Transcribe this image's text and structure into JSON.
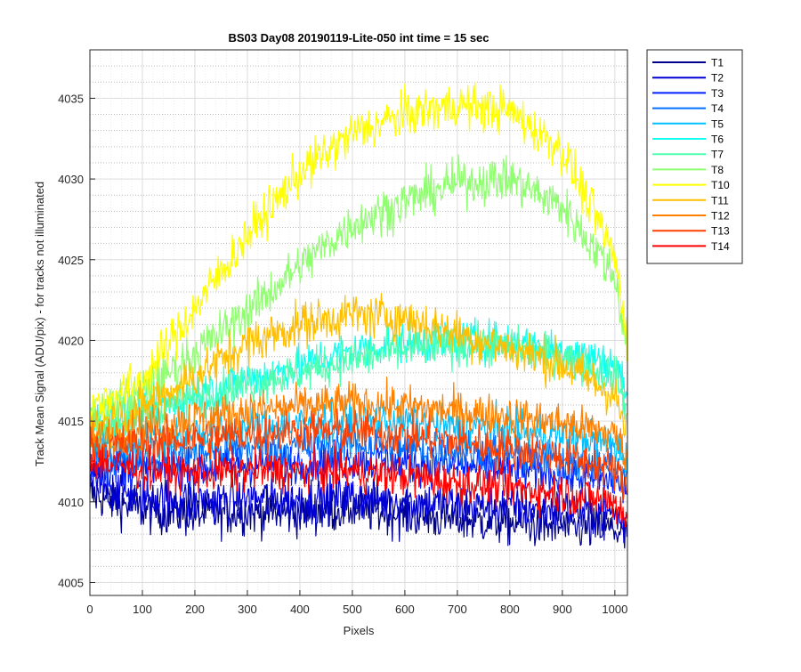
{
  "chart_data": {
    "type": "line",
    "title": "BS03 Day08 20190119-Lite-050 int time = 15 sec",
    "xlabel": "Pixels",
    "ylabel": "Track Mean Signal (ADU/pix) - for tracks not illuminated",
    "xlim": [
      0,
      1024
    ],
    "ylim": [
      4004.2,
      4038
    ],
    "xticks": [
      0,
      100,
      200,
      300,
      400,
      500,
      600,
      700,
      800,
      900,
      1000
    ],
    "yticks": [
      4005,
      4010,
      4015,
      4020,
      4025,
      4030,
      4035
    ],
    "grid": "major and minor",
    "legend_position": "outside right, top",
    "series": [
      {
        "name": "T1",
        "color": "#00008f",
        "x": [
          0,
          100,
          200,
          300,
          400,
          500,
          600,
          700,
          800,
          900,
          1000,
          1024
        ],
        "values": [
          4010.5,
          4009.5,
          4009.2,
          4009.4,
          4009.3,
          4009.6,
          4009.2,
          4008.9,
          4008.7,
          4008.4,
          4008.3,
          4007.6
        ]
      },
      {
        "name": "T2",
        "color": "#0000d6",
        "x": [
          0,
          100,
          200,
          300,
          400,
          500,
          600,
          700,
          800,
          900,
          1000,
          1024
        ],
        "values": [
          4011.2,
          4010.3,
          4010.0,
          4010.2,
          4010.1,
          4010.3,
          4010.0,
          4009.8,
          4009.7,
          4009.5,
          4009.3,
          4008.4
        ]
      },
      {
        "name": "T3",
        "color": "#0020ff",
        "x": [
          0,
          100,
          200,
          300,
          400,
          500,
          600,
          700,
          800,
          900,
          1000,
          1024
        ],
        "values": [
          4012.3,
          4012.0,
          4012.0,
          4012.3,
          4012.4,
          4012.6,
          4012.4,
          4012.2,
          4012.0,
          4011.7,
          4011.3,
          4010.6
        ]
      },
      {
        "name": "T4",
        "color": "#0070ff",
        "x": [
          0,
          100,
          200,
          300,
          400,
          500,
          600,
          700,
          800,
          900,
          1000,
          1024
        ],
        "values": [
          4012.8,
          4012.8,
          4013.0,
          4013.3,
          4013.4,
          4013.6,
          4013.4,
          4013.2,
          4013.0,
          4012.6,
          4012.2,
          4011.4
        ]
      },
      {
        "name": "T5",
        "color": "#00c0ff",
        "x": [
          0,
          100,
          200,
          300,
          400,
          500,
          600,
          700,
          800,
          900,
          1000,
          1024
        ],
        "values": [
          4013.5,
          4013.8,
          4014.2,
          4014.6,
          4014.8,
          4015.0,
          4014.9,
          4014.7,
          4014.5,
          4014.1,
          4013.6,
          4012.6
        ]
      },
      {
        "name": "T6",
        "color": "#10ffef",
        "x": [
          0,
          100,
          200,
          300,
          400,
          500,
          600,
          700,
          800,
          900,
          1000,
          1024
        ],
        "values": [
          4014.8,
          4015.6,
          4016.6,
          4017.6,
          4018.4,
          4019.4,
          4019.9,
          4020.0,
          4019.9,
          4019.5,
          4018.5,
          4016.8
        ]
      },
      {
        "name": "T7",
        "color": "#50ffaf",
        "x": [
          0,
          100,
          200,
          300,
          400,
          500,
          600,
          700,
          800,
          900,
          1000,
          1024
        ],
        "values": [
          4014.5,
          4015.4,
          4016.4,
          4017.3,
          4018.0,
          4018.8,
          4019.4,
          4019.7,
          4019.6,
          4019.0,
          4017.8,
          4015.8
        ]
      },
      {
        "name": "T8",
        "color": "#8fff70",
        "x": [
          0,
          100,
          200,
          300,
          400,
          500,
          600,
          700,
          800,
          900,
          1000,
          1024
        ],
        "values": [
          4015.3,
          4016.8,
          4019.2,
          4021.8,
          4024.6,
          4027.2,
          4028.6,
          4029.8,
          4030.0,
          4028.3,
          4024.0,
          4019.5
        ]
      },
      {
        "name": "T10",
        "color": "#ffff00",
        "x": [
          0,
          100,
          200,
          300,
          400,
          500,
          600,
          700,
          800,
          900,
          1000,
          1024
        ],
        "values": [
          4015.8,
          4017.5,
          4022.0,
          4026.5,
          4030.4,
          4032.8,
          4034.0,
          4034.6,
          4034.2,
          4031.8,
          4025.2,
          4020.0
        ]
      },
      {
        "name": "T11",
        "color": "#ffbf00",
        "x": [
          0,
          100,
          200,
          300,
          400,
          500,
          600,
          700,
          800,
          900,
          1000,
          1024
        ],
        "values": [
          4014.6,
          4015.8,
          4017.8,
          4019.8,
          4021.0,
          4021.6,
          4021.4,
          4020.4,
          4019.5,
          4018.5,
          4016.6,
          4014.0
        ]
      },
      {
        "name": "T12",
        "color": "#ff8000",
        "x": [
          0,
          100,
          200,
          300,
          400,
          500,
          600,
          700,
          800,
          900,
          1000,
          1024
        ],
        "values": [
          4013.8,
          4014.6,
          4015.2,
          4015.6,
          4015.9,
          4016.1,
          4015.9,
          4015.6,
          4015.3,
          4014.9,
          4014.2,
          4012.8
        ]
      },
      {
        "name": "T13",
        "color": "#ff4000",
        "x": [
          0,
          100,
          200,
          300,
          400,
          500,
          600,
          700,
          800,
          900,
          1000,
          1024
        ],
        "values": [
          4013.4,
          4013.6,
          4013.9,
          4014.2,
          4014.4,
          4014.4,
          4014.1,
          4013.7,
          4013.3,
          4012.8,
          4012.0,
          4010.6
        ]
      },
      {
        "name": "T14",
        "color": "#ff0000",
        "x": [
          0,
          100,
          200,
          300,
          400,
          500,
          600,
          700,
          800,
          900,
          1000,
          1024
        ],
        "values": [
          4012.6,
          4012.0,
          4011.8,
          4011.9,
          4011.9,
          4011.9,
          4011.6,
          4011.2,
          4010.9,
          4010.5,
          4010.0,
          4009.0
        ]
      }
    ]
  }
}
